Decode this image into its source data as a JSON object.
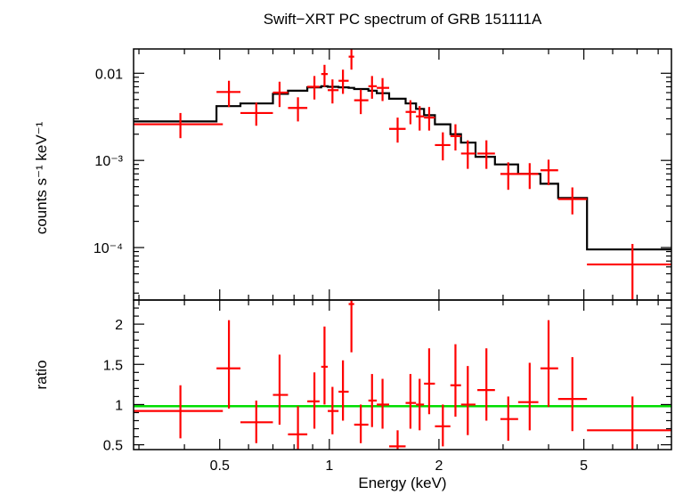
{
  "chart_data": [
    {
      "type": "scatter",
      "panel": "spectrum",
      "title": "Swift−XRT PC spectrum of GRB 151111A",
      "ylabel": "counts s⁻¹ keV⁻¹",
      "xscale": "log",
      "yscale": "log",
      "xlim": [
        0.29,
        8.7
      ],
      "ylim": [
        2.5e-05,
        0.019
      ],
      "y_ticks": [
        {
          "value": 0.01,
          "label": "0.01"
        },
        {
          "value": 0.001,
          "label": "10⁻³"
        },
        {
          "value": 0.0001,
          "label": "10⁻⁴"
        }
      ],
      "series": [
        {
          "color": "#ff0000",
          "points": [
            {
              "x": 0.39,
              "xlo": 0.29,
              "xhi": 0.51,
              "y": 0.0026,
              "ylo": 0.0018,
              "yhi": 0.0035
            },
            {
              "x": 0.53,
              "xlo": 0.49,
              "xhi": 0.57,
              "y": 0.0061,
              "ylo": 0.0041,
              "yhi": 0.0082
            },
            {
              "x": 0.63,
              "xlo": 0.57,
              "xhi": 0.7,
              "y": 0.0035,
              "ylo": 0.0025,
              "yhi": 0.0046
            },
            {
              "x": 0.73,
              "xlo": 0.7,
              "xhi": 0.77,
              "y": 0.006,
              "ylo": 0.0041,
              "yhi": 0.008
            },
            {
              "x": 0.82,
              "xlo": 0.77,
              "xhi": 0.87,
              "y": 0.004,
              "ylo": 0.0028,
              "yhi": 0.0053
            },
            {
              "x": 0.91,
              "xlo": 0.87,
              "xhi": 0.94,
              "y": 0.007,
              "ylo": 0.005,
              "yhi": 0.0093
            },
            {
              "x": 0.97,
              "xlo": 0.95,
              "xhi": 0.99,
              "y": 0.0098,
              "ylo": 0.007,
              "yhi": 0.0125
            },
            {
              "x": 1.02,
              "xlo": 0.99,
              "xhi": 1.06,
              "y": 0.0064,
              "ylo": 0.0045,
              "yhi": 0.0085
            },
            {
              "x": 1.09,
              "xlo": 1.06,
              "xhi": 1.13,
              "y": 0.0082,
              "ylo": 0.0058,
              "yhi": 0.011
            },
            {
              "x": 1.15,
              "xlo": 1.13,
              "xhi": 1.17,
              "y": 0.0155,
              "ylo": 0.011,
              "yhi": 0.02
            },
            {
              "x": 1.22,
              "xlo": 1.17,
              "xhi": 1.28,
              "y": 0.0049,
              "ylo": 0.0034,
              "yhi": 0.0065
            },
            {
              "x": 1.31,
              "xlo": 1.28,
              "xhi": 1.35,
              "y": 0.0071,
              "ylo": 0.0051,
              "yhi": 0.0093
            },
            {
              "x": 1.4,
              "xlo": 1.35,
              "xhi": 1.46,
              "y": 0.0068,
              "ylo": 0.0048,
              "yhi": 0.0088
            },
            {
              "x": 1.54,
              "xlo": 1.46,
              "xhi": 1.62,
              "y": 0.0023,
              "ylo": 0.0016,
              "yhi": 0.0031
            },
            {
              "x": 1.67,
              "xlo": 1.62,
              "xhi": 1.73,
              "y": 0.0036,
              "ylo": 0.0026,
              "yhi": 0.0049
            },
            {
              "x": 1.77,
              "xlo": 1.73,
              "xhi": 1.82,
              "y": 0.0032,
              "ylo": 0.0022,
              "yhi": 0.0042
            },
            {
              "x": 1.88,
              "xlo": 1.82,
              "xhi": 1.95,
              "y": 0.0031,
              "ylo": 0.0022,
              "yhi": 0.0041
            },
            {
              "x": 2.05,
              "xlo": 1.95,
              "xhi": 2.15,
              "y": 0.0015,
              "ylo": 0.001,
              "yhi": 0.0021
            },
            {
              "x": 2.22,
              "xlo": 2.15,
              "xhi": 2.3,
              "y": 0.0019,
              "ylo": 0.0013,
              "yhi": 0.0026
            },
            {
              "x": 2.4,
              "xlo": 2.3,
              "xhi": 2.52,
              "y": 0.0012,
              "ylo": 0.0008,
              "yhi": 0.0017
            },
            {
              "x": 2.7,
              "xlo": 2.55,
              "xhi": 2.85,
              "y": 0.0012,
              "ylo": 0.0008,
              "yhi": 0.0017
            },
            {
              "x": 3.1,
              "xlo": 2.95,
              "xhi": 3.3,
              "y": 0.0007,
              "ylo": 0.00046,
              "yhi": 0.00095
            },
            {
              "x": 3.55,
              "xlo": 3.3,
              "xhi": 3.75,
              "y": 0.0007,
              "ylo": 0.00047,
              "yhi": 0.00093
            },
            {
              "x": 4.0,
              "xlo": 3.8,
              "xhi": 4.25,
              "y": 0.00077,
              "ylo": 0.00052,
              "yhi": 0.00102
            },
            {
              "x": 4.65,
              "xlo": 4.25,
              "xhi": 5.1,
              "y": 0.00036,
              "ylo": 0.00024,
              "yhi": 0.00049
            },
            {
              "x": 6.8,
              "xlo": 5.1,
              "xhi": 8.7,
              "y": 6.4e-05,
              "ylo": 2.5e-05,
              "yhi": 0.00011
            }
          ]
        },
        {
          "color": "#000000",
          "style": "step",
          "edges": [
            0.29,
            0.49,
            0.57,
            0.7,
            0.77,
            0.87,
            0.95,
            0.99,
            1.06,
            1.13,
            1.17,
            1.28,
            1.35,
            1.46,
            1.62,
            1.73,
            1.82,
            1.95,
            2.15,
            2.3,
            2.52,
            2.85,
            3.3,
            3.8,
            4.25,
            5.1,
            8.7
          ],
          "values": [
            0.0028,
            0.0042,
            0.0045,
            0.0058,
            0.0063,
            0.0069,
            0.0071,
            0.007,
            0.0069,
            0.0068,
            0.0066,
            0.0063,
            0.0059,
            0.0051,
            0.0045,
            0.0039,
            0.0033,
            0.0026,
            0.002,
            0.0016,
            0.0011,
            0.0009,
            0.0007,
            0.00054,
            0.00037,
            9.5e-05
          ]
        }
      ]
    },
    {
      "type": "scatter",
      "panel": "ratio",
      "ylabel": "ratio",
      "xlabel": "Energy (keV)",
      "xscale": "log",
      "xlim": [
        0.29,
        8.7
      ],
      "ylim": [
        0.44,
        2.3
      ],
      "x_ticks": [
        {
          "value": 0.5,
          "label": "0.5"
        },
        {
          "value": 1,
          "label": "1"
        },
        {
          "value": 2,
          "label": "2"
        },
        {
          "value": 5,
          "label": "5"
        }
      ],
      "y_ticks": [
        {
          "value": 0.5,
          "label": "0.5"
        },
        {
          "value": 1,
          "label": "1"
        },
        {
          "value": 1.5,
          "label": "1.5"
        },
        {
          "value": 2,
          "label": "2"
        }
      ],
      "reference_line": {
        "y": 0.98,
        "color": "#00dd00"
      },
      "series": [
        {
          "color": "#ff0000",
          "points": [
            {
              "x": 0.39,
              "xlo": 0.29,
              "xhi": 0.51,
              "y": 0.92,
              "ylo": 0.58,
              "yhi": 1.24
            },
            {
              "x": 0.53,
              "xlo": 0.49,
              "xhi": 0.57,
              "y": 1.45,
              "ylo": 0.95,
              "yhi": 2.05
            },
            {
              "x": 0.63,
              "xlo": 0.57,
              "xhi": 0.7,
              "y": 0.78,
              "ylo": 0.52,
              "yhi": 1.05
            },
            {
              "x": 0.73,
              "xlo": 0.7,
              "xhi": 0.77,
              "y": 1.12,
              "ylo": 0.75,
              "yhi": 1.62
            },
            {
              "x": 0.82,
              "xlo": 0.77,
              "xhi": 0.87,
              "y": 0.63,
              "ylo": 0.44,
              "yhi": 0.98
            },
            {
              "x": 0.91,
              "xlo": 0.87,
              "xhi": 0.94,
              "y": 1.04,
              "ylo": 0.7,
              "yhi": 1.4
            },
            {
              "x": 0.97,
              "xlo": 0.95,
              "xhi": 0.99,
              "y": 1.47,
              "ylo": 1.0,
              "yhi": 1.97
            },
            {
              "x": 1.02,
              "xlo": 0.99,
              "xhi": 1.06,
              "y": 0.92,
              "ylo": 0.63,
              "yhi": 1.22
            },
            {
              "x": 1.09,
              "xlo": 1.06,
              "xhi": 1.13,
              "y": 1.16,
              "ylo": 0.8,
              "yhi": 1.55
            },
            {
              "x": 1.15,
              "xlo": 1.13,
              "xhi": 1.17,
              "y": 2.25,
              "ylo": 1.65,
              "yhi": 2.3
            },
            {
              "x": 1.22,
              "xlo": 1.17,
              "xhi": 1.28,
              "y": 0.75,
              "ylo": 0.52,
              "yhi": 1.0
            },
            {
              "x": 1.31,
              "xlo": 1.28,
              "xhi": 1.35,
              "y": 1.05,
              "ylo": 0.72,
              "yhi": 1.38
            },
            {
              "x": 1.4,
              "xlo": 1.35,
              "xhi": 1.46,
              "y": 1.0,
              "ylo": 0.7,
              "yhi": 1.32
            },
            {
              "x": 1.54,
              "xlo": 1.46,
              "xhi": 1.62,
              "y": 0.48,
              "ylo": 0.44,
              "yhi": 0.68
            },
            {
              "x": 1.67,
              "xlo": 1.62,
              "xhi": 1.73,
              "y": 1.02,
              "ylo": 0.7,
              "yhi": 1.38
            },
            {
              "x": 1.77,
              "xlo": 1.73,
              "xhi": 1.82,
              "y": 1.0,
              "ylo": 0.68,
              "yhi": 1.32
            },
            {
              "x": 1.88,
              "xlo": 1.82,
              "xhi": 1.95,
              "y": 1.26,
              "ylo": 0.88,
              "yhi": 1.7
            },
            {
              "x": 2.05,
              "xlo": 1.95,
              "xhi": 2.15,
              "y": 0.73,
              "ylo": 0.48,
              "yhi": 1.0
            },
            {
              "x": 2.22,
              "xlo": 2.15,
              "xhi": 2.3,
              "y": 1.24,
              "ylo": 0.85,
              "yhi": 1.75
            },
            {
              "x": 2.4,
              "xlo": 2.3,
              "xhi": 2.52,
              "y": 1.0,
              "ylo": 0.62,
              "yhi": 1.48
            },
            {
              "x": 2.7,
              "xlo": 2.55,
              "xhi": 2.85,
              "y": 1.18,
              "ylo": 0.8,
              "yhi": 1.7
            },
            {
              "x": 3.1,
              "xlo": 2.95,
              "xhi": 3.3,
              "y": 0.82,
              "ylo": 0.55,
              "yhi": 1.1
            },
            {
              "x": 3.55,
              "xlo": 3.3,
              "xhi": 3.75,
              "y": 1.03,
              "ylo": 0.68,
              "yhi": 1.52
            },
            {
              "x": 4.0,
              "xlo": 3.8,
              "xhi": 4.25,
              "y": 1.45,
              "ylo": 0.97,
              "yhi": 2.05
            },
            {
              "x": 4.65,
              "xlo": 4.25,
              "xhi": 5.1,
              "y": 1.07,
              "ylo": 0.67,
              "yhi": 1.59
            },
            {
              "x": 6.8,
              "xlo": 5.1,
              "xhi": 8.7,
              "y": 0.68,
              "ylo": 0.44,
              "yhi": 1.1
            }
          ]
        }
      ]
    }
  ]
}
